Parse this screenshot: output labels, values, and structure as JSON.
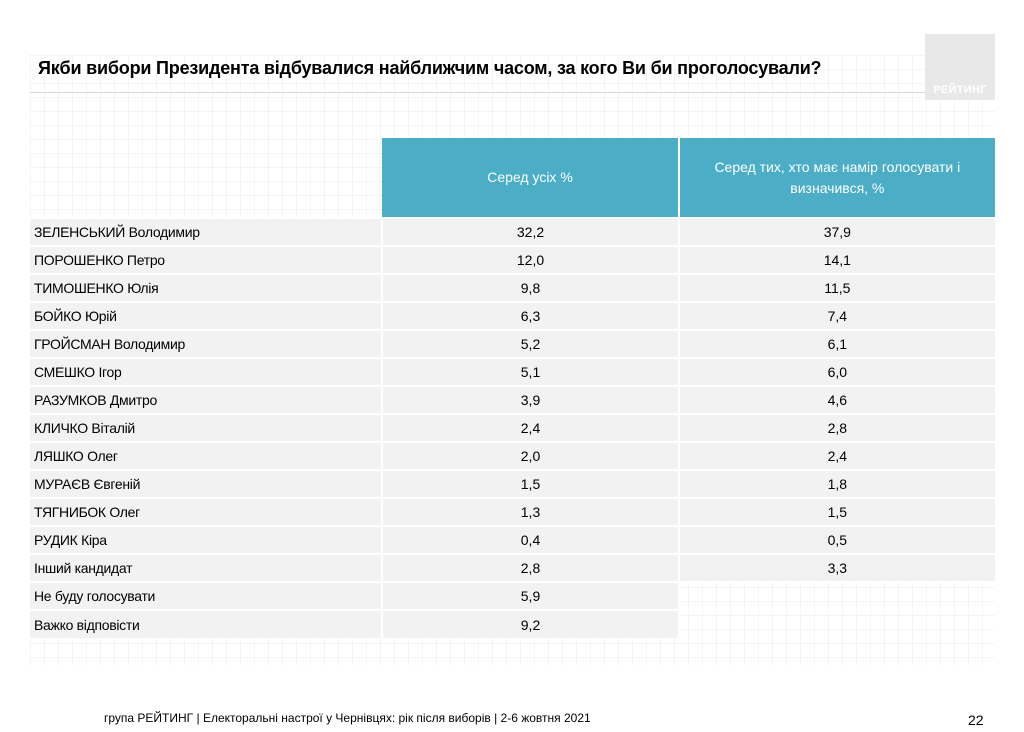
{
  "title": "Якби вибори Президента відбувалися найближчим часом, за кого Ви би проголосували?",
  "logo_text": "РЕЙТИНГ",
  "table": {
    "headers": [
      "Серед усіх %",
      "Серед тих, хто має намір голосувати і визначився, %"
    ],
    "rows": [
      {
        "name": "ЗЕЛЕНСЬКИЙ Володимир",
        "all": "32,2",
        "decided": "37,9"
      },
      {
        "name": "ПОРОШЕНКО Петро",
        "all": "12,0",
        "decided": "14,1"
      },
      {
        "name": "ТИМОШЕНКО Юлія",
        "all": "9,8",
        "decided": "11,5"
      },
      {
        "name": "БОЙКО Юрій",
        "all": "6,3",
        "decided": "7,4"
      },
      {
        "name": "ГРОЙСМАН Володимир",
        "all": "5,2",
        "decided": "6,1"
      },
      {
        "name": "СМЕШКО Ігор",
        "all": "5,1",
        "decided": "6,0"
      },
      {
        "name": "РАЗУМКОВ Дмитро",
        "all": "3,9",
        "decided": "4,6"
      },
      {
        "name": "КЛИЧКО Віталій",
        "all": "2,4",
        "decided": "2,8"
      },
      {
        "name": "ЛЯШКО Олег",
        "all": "2,0",
        "decided": "2,4"
      },
      {
        "name": "МУРАЄВ Євгеній",
        "all": "1,5",
        "decided": "1,8"
      },
      {
        "name": "ТЯГНИБОК Олег",
        "all": "1,3",
        "decided": "1,5"
      },
      {
        "name": "РУДИК Кіра",
        "all": "0,4",
        "decided": "0,5"
      },
      {
        "name": "Інший кандидат",
        "all": "2,8",
        "decided": "3,3"
      },
      {
        "name": "Не буду голосувати",
        "all": "5,9",
        "decided": ""
      },
      {
        "name": "Важко відповісти",
        "all": "9,2",
        "decided": ""
      }
    ]
  },
  "footer": "група РЕЙТИНГ  | Електоральні настрої у Чернівцях: рік після виборів | 2-6 жовтня 2021",
  "page_number": "22",
  "colors": {
    "header_bg": "#4badc6",
    "row_bg": "#f2f2f2"
  }
}
